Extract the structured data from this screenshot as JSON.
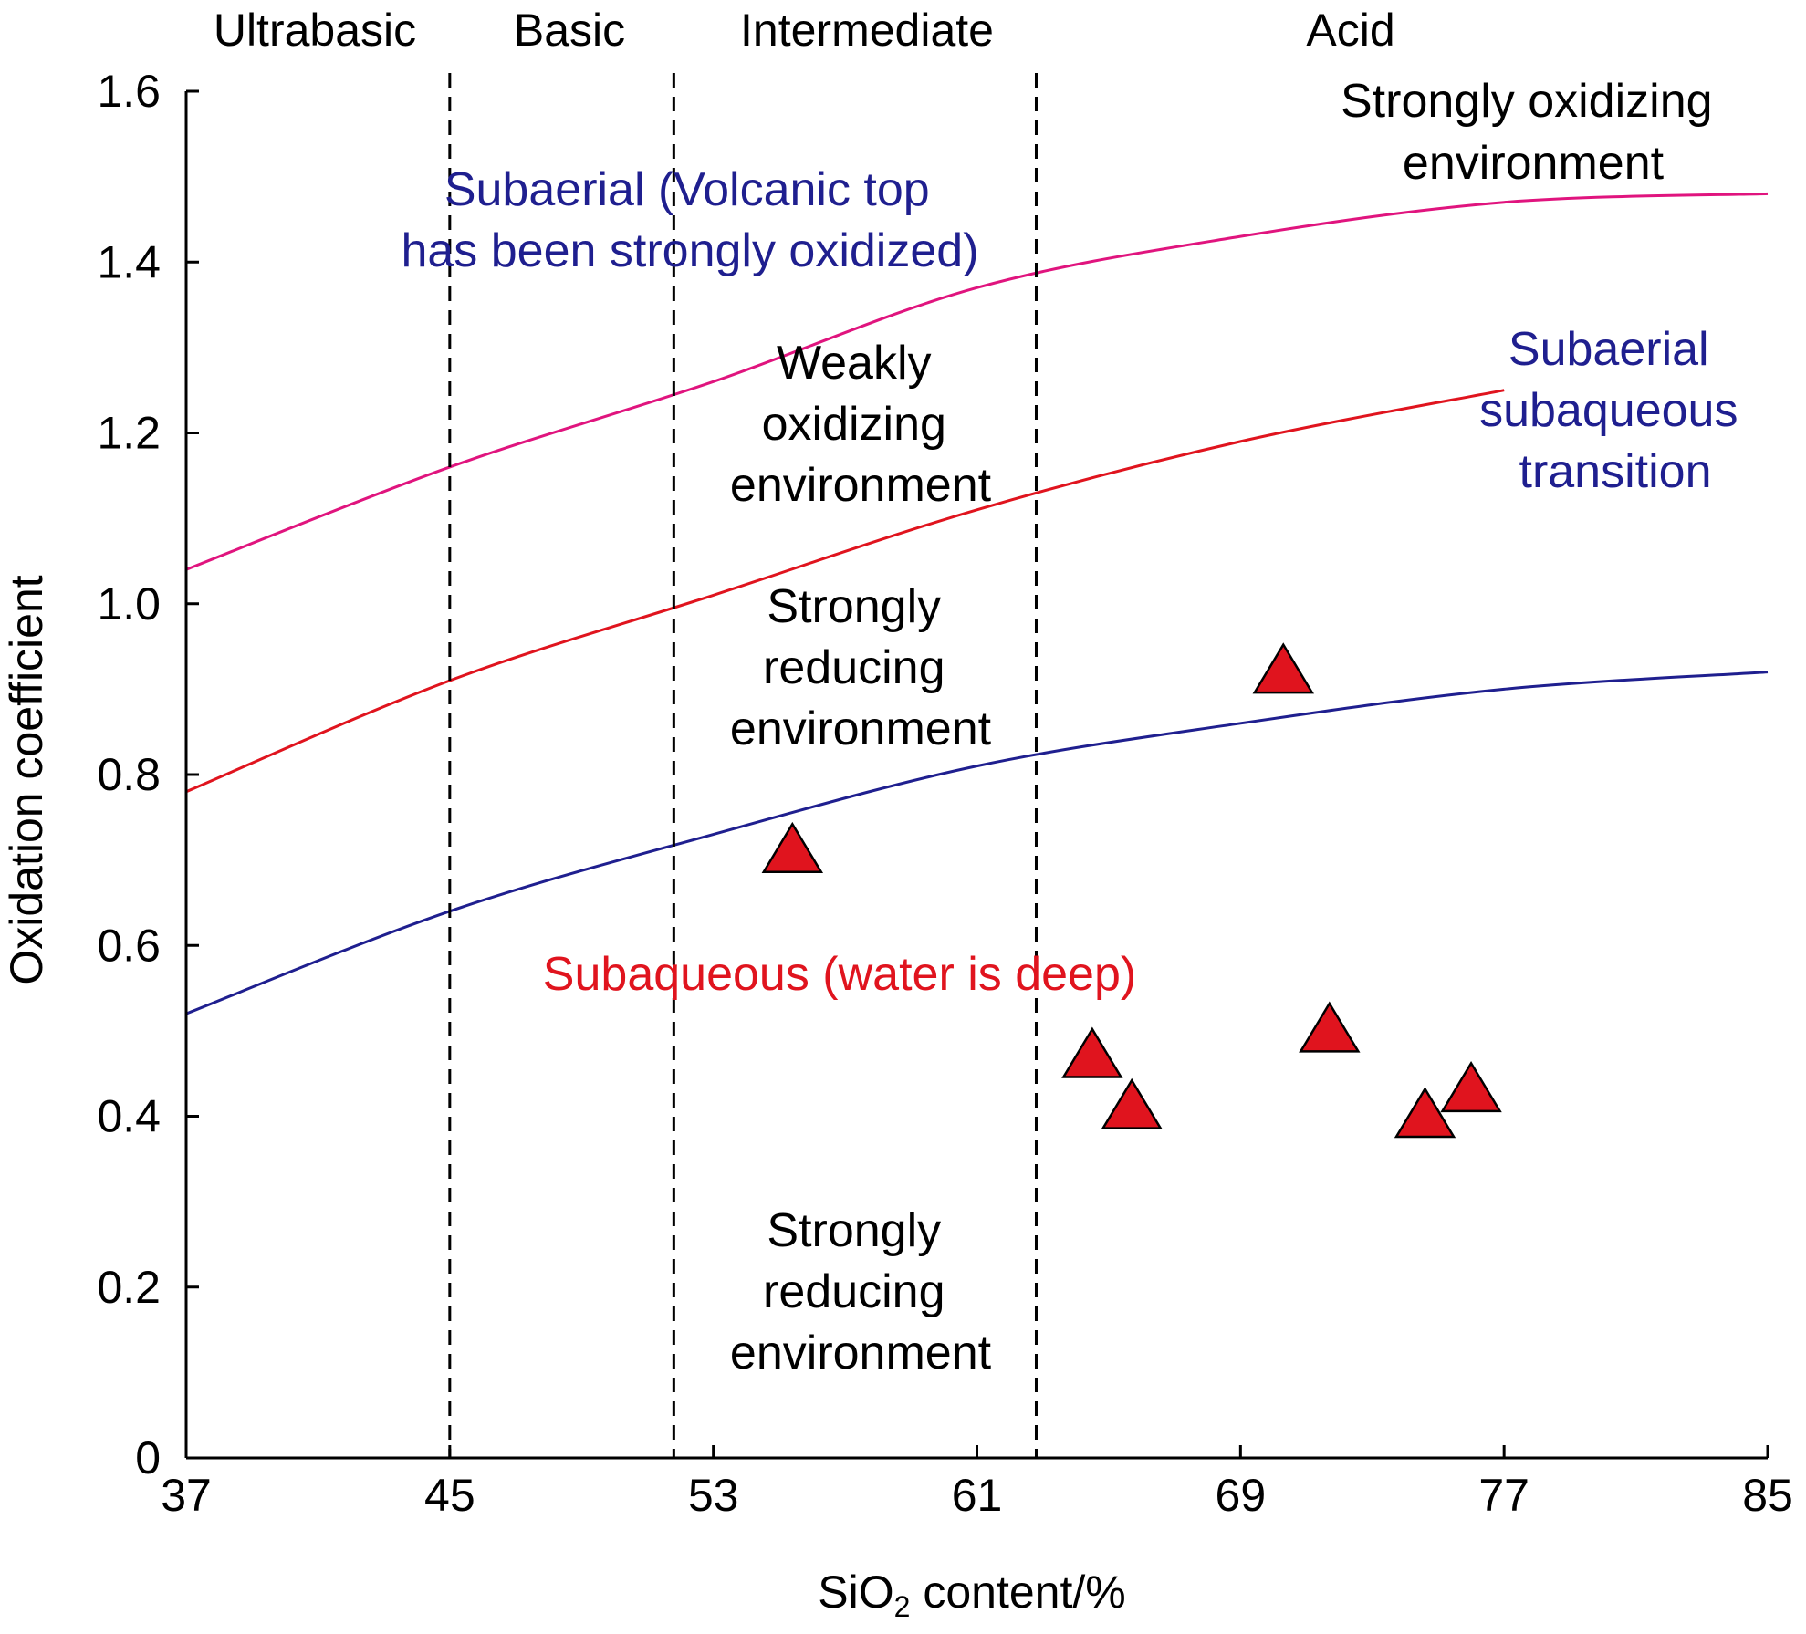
{
  "chart_data": {
    "type": "scatter",
    "xlabel_main": "SiO",
    "xlabel_sub": "2",
    "xlabel_rest": " content/%",
    "ylabel": "Oxidation coefficient",
    "xlim": [
      37,
      85
    ],
    "ylim": [
      0,
      1.6
    ],
    "x_ticks": [
      "37",
      "45",
      "53",
      "61",
      "69",
      "77",
      "85"
    ],
    "y_ticks": [
      "0",
      "0.2",
      "0.4",
      "0.6",
      "0.8",
      "1.0",
      "1.2",
      "1.4",
      "1.6"
    ],
    "grid": false,
    "boundaries": [
      45,
      51.8,
      62.8
    ],
    "zones": [
      {
        "label": "Ultrabasic",
        "x": 41
      },
      {
        "label": "Basic",
        "x": 48.4
      },
      {
        "label": "Intermediate",
        "x": 57.3
      },
      {
        "label": "Acid",
        "x": 71.4
      }
    ],
    "curves": [
      {
        "color": "#e0147e",
        "points": [
          [
            37,
            1.04
          ],
          [
            45,
            1.16
          ],
          [
            53,
            1.26
          ],
          [
            61,
            1.37
          ],
          [
            69,
            1.43
          ],
          [
            77,
            1.47
          ],
          [
            85,
            1.48
          ]
        ]
      },
      {
        "color": "#e0141e",
        "points": [
          [
            37,
            0.78
          ],
          [
            45,
            0.91
          ],
          [
            53,
            1.01
          ],
          [
            61,
            1.11
          ],
          [
            69,
            1.19
          ],
          [
            77,
            1.25
          ]
        ]
      },
      {
        "color": "#1f1f8f",
        "points": [
          [
            37,
            0.52
          ],
          [
            45,
            0.64
          ],
          [
            53,
            0.73
          ],
          [
            61,
            0.81
          ],
          [
            69,
            0.86
          ],
          [
            77,
            0.9
          ],
          [
            85,
            0.92
          ]
        ]
      }
    ],
    "points": [
      {
        "x": 55.4,
        "y": 0.71
      },
      {
        "x": 64.5,
        "y": 0.47
      },
      {
        "x": 65.7,
        "y": 0.41
      },
      {
        "x": 70.3,
        "y": 0.92
      },
      {
        "x": 71.7,
        "y": 0.5
      },
      {
        "x": 74.6,
        "y": 0.4
      },
      {
        "x": 76.0,
        "y": 0.43
      }
    ],
    "annotations": {
      "strong_ox": [
        "Strongly oxidizing",
        "environment"
      ],
      "subaerial_top": [
        "Subaerial (Volcanic top",
        "has been strongly oxidized)"
      ],
      "weak_ox": [
        "Weakly",
        "oxidizing",
        "environment"
      ],
      "transition": [
        "Subaerial",
        "subaqueous",
        "transition"
      ],
      "strong_red_1": [
        "Strongly",
        "reducing",
        "environment"
      ],
      "subaqueous": "Subaqueous (water is deep)",
      "strong_red_2": [
        "Strongly",
        "reducing",
        "environment"
      ]
    },
    "marker_color": "#e0141e"
  }
}
